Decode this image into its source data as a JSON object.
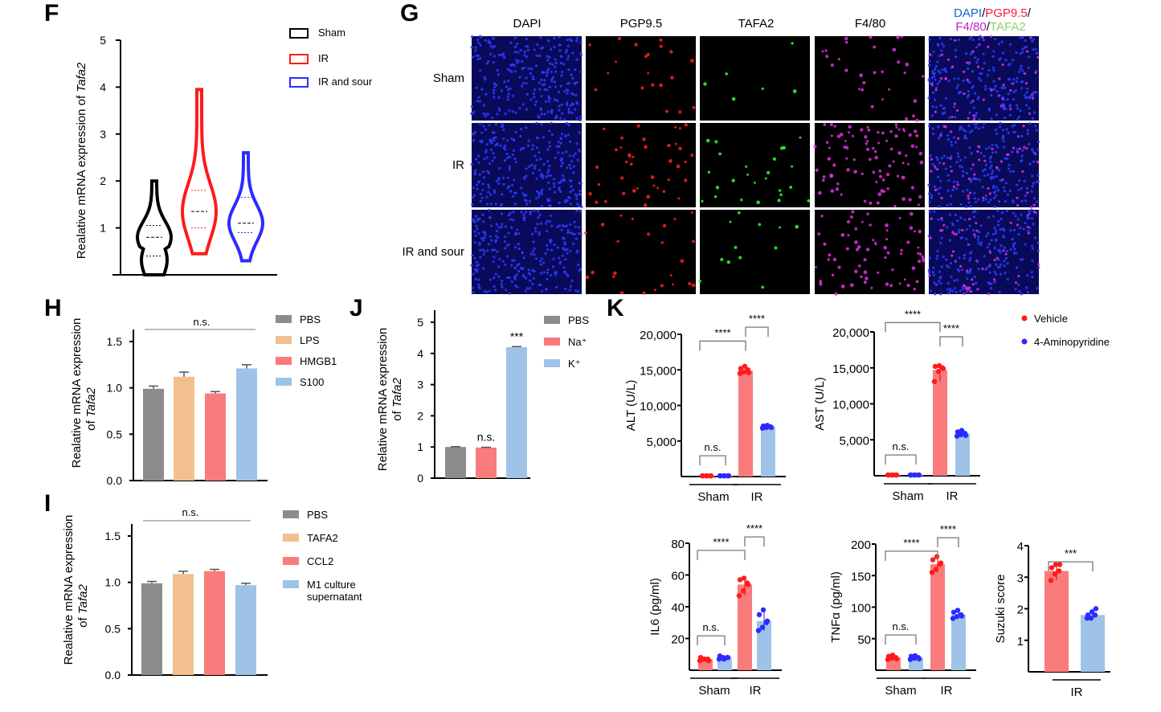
{
  "panel_letters": [
    "F",
    "G",
    "H",
    "I",
    "J",
    "K"
  ],
  "chart_data": [
    {
      "id": "F",
      "type": "violin",
      "ylabel": "Realative mRNA expression of ",
      "ylabel_italic": "Tafa2",
      "ylim": [
        0,
        5
      ],
      "yticks": [
        1,
        2,
        3,
        4,
        5
      ],
      "legend": [
        {
          "name": "Sham",
          "color": "#000000"
        },
        {
          "name": "IR",
          "color": "#ff1a1a"
        },
        {
          "name": "IR and sour",
          "color": "#2b2bff"
        }
      ],
      "legend_placement": "top-right",
      "groups": [
        {
          "name": "Sham",
          "min": 0.0,
          "max": 2.0,
          "median": 0.8,
          "q1": 0.4,
          "q3": 1.05
        },
        {
          "name": "IR",
          "min": 0.45,
          "max": 3.95,
          "median": 1.35,
          "q1": 1.0,
          "q3": 1.8
        },
        {
          "name": "IR and sour",
          "min": 0.3,
          "max": 2.6,
          "median": 1.1,
          "q1": 0.9,
          "q3": 1.65
        }
      ]
    },
    {
      "id": "H",
      "type": "bar",
      "ylabel": "Realative mRNA expression",
      "ylabel2": "of ",
      "ylabel2_italic": "Tafa2",
      "ylim": [
        0,
        1.5
      ],
      "yticks": [
        "0.0",
        "0.5",
        "1.0",
        "1.5"
      ],
      "categories": [
        "PBS",
        "LPS",
        "HMGB1",
        "S100"
      ],
      "values": [
        0.99,
        1.12,
        0.94,
        1.21
      ],
      "errors": [
        0.03,
        0.05,
        0.02,
        0.04
      ],
      "colors": [
        "#8c8c8c",
        "#f2c08f",
        "#fa7b7b",
        "#9fc3e8"
      ],
      "annotation": "n.s.",
      "legend_placement": "right"
    },
    {
      "id": "I",
      "type": "bar",
      "ylabel": "Realative mRNA expression",
      "ylabel2": "of ",
      "ylabel2_italic": "Tafa2",
      "ylim": [
        0,
        1.5
      ],
      "yticks": [
        "0.0",
        "0.5",
        "1.0",
        "1.5"
      ],
      "categories": [
        "PBS",
        "TAFA2",
        "CCL2",
        "M1 culture supernatant"
      ],
      "legend_lines": [
        [
          "PBS"
        ],
        [
          "TAFA2"
        ],
        [
          "CCL2"
        ],
        [
          "M1 culture",
          "supernatant"
        ]
      ],
      "values": [
        0.99,
        1.09,
        1.12,
        0.97
      ],
      "errors": [
        0.02,
        0.03,
        0.02,
        0.02
      ],
      "colors": [
        "#8c8c8c",
        "#f2c08f",
        "#fa7b7b",
        "#9fc3e8"
      ],
      "annotation": "n.s.",
      "legend_placement": "right"
    },
    {
      "id": "J",
      "type": "bar",
      "ylabel": "Relative mRNA expression",
      "ylabel2": "of ",
      "ylabel2_italic": "Tafa2",
      "ylim": [
        0,
        5
      ],
      "yticks": [
        "0",
        "1",
        "2",
        "3",
        "4",
        "5"
      ],
      "categories": [
        "PBS",
        "Na⁺",
        "K⁺"
      ],
      "values": [
        1.0,
        0.98,
        4.2
      ],
      "errors": [
        0.01,
        0.01,
        0.02
      ],
      "bar_labels": [
        "",
        "n.s.",
        "***"
      ],
      "colors": [
        "#8c8c8c",
        "#fa7b7b",
        "#9fc3e8"
      ],
      "legend_placement": "right"
    },
    {
      "id": "K-ALT",
      "type": "bar",
      "ylabel": "ALT (U/L)",
      "ylim": [
        0,
        20000
      ],
      "yticks": [
        "5,000",
        "10,000",
        "15,000",
        "20,000"
      ],
      "ytick_values": [
        5000,
        10000,
        15000,
        20000
      ],
      "groups": [
        "Sham",
        "IR"
      ],
      "series": [
        {
          "name": "Vehicle"
        },
        {
          "name": "4-Aminopyridine"
        }
      ],
      "values": [
        100,
        100,
        14900,
        7000
      ],
      "points": [
        [
          100,
          100,
          100,
          100,
          100,
          100
        ],
        [
          100,
          100,
          100,
          100,
          100,
          100
        ],
        [
          14500,
          14700,
          15000,
          15200,
          15500,
          14600
        ],
        [
          6800,
          6900,
          7000,
          7100,
          7200,
          6900
        ]
      ],
      "brackets": [
        {
          "from": 0,
          "to": 1,
          "label": "n.s."
        },
        {
          "from": 0,
          "to": 2,
          "label": "****"
        },
        {
          "from": 2,
          "to": 3,
          "label": "****"
        }
      ]
    },
    {
      "id": "K-AST",
      "type": "bar",
      "ylabel": "AST (U/L)",
      "ylim": [
        0,
        20000
      ],
      "yticks": [
        "5,000",
        "10,000",
        "15,000",
        "20,000"
      ],
      "ytick_values": [
        5000,
        10000,
        15000,
        20000
      ],
      "groups": [
        "Sham",
        "IR"
      ],
      "values": [
        100,
        100,
        14700,
        5900
      ],
      "points": [
        [
          100,
          100,
          100,
          100,
          100,
          100
        ],
        [
          100,
          100,
          100,
          100,
          100,
          100
        ],
        [
          13100,
          14500,
          15000,
          15200,
          15300,
          14900
        ],
        [
          5500,
          5700,
          5900,
          6100,
          6300,
          5600
        ]
      ],
      "brackets": [
        {
          "from": 0,
          "to": 1,
          "label": "n.s."
        },
        {
          "from": 0,
          "to": 2,
          "label": "****"
        },
        {
          "from": 2,
          "to": 3,
          "label": "****"
        }
      ]
    },
    {
      "id": "K-IL6",
      "type": "bar",
      "ylabel": "IL6 (pg/ml)",
      "ylim": [
        0,
        80
      ],
      "yticks": [
        "20",
        "40",
        "60",
        "80"
      ],
      "ytick_values": [
        20,
        40,
        60,
        80
      ],
      "groups": [
        "Sham",
        "IR"
      ],
      "values": [
        7,
        8,
        54,
        31
      ],
      "points": [
        [
          6,
          7,
          7,
          8,
          7,
          6
        ],
        [
          7,
          8,
          8,
          9,
          7,
          8
        ],
        [
          47,
          50,
          55,
          57,
          58,
          54
        ],
        [
          25,
          27,
          30,
          35,
          38,
          31
        ]
      ],
      "brackets": [
        {
          "from": 0,
          "to": 1,
          "label": "n.s."
        },
        {
          "from": 0,
          "to": 2,
          "label": "****"
        },
        {
          "from": 2,
          "to": 3,
          "label": "****"
        }
      ]
    },
    {
      "id": "K-TNF",
      "type": "bar",
      "ylabel": "TNFα (pg/ml)",
      "ylim": [
        0,
        200
      ],
      "yticks": [
        "50",
        "100",
        "150",
        "200"
      ],
      "ytick_values": [
        50,
        100,
        150,
        200
      ],
      "groups": [
        "Sham",
        "IR"
      ],
      "values": [
        20,
        20,
        168,
        88
      ],
      "points": [
        [
          17,
          19,
          20,
          22,
          24,
          18
        ],
        [
          17,
          19,
          20,
          22,
          23,
          18
        ],
        [
          155,
          160,
          168,
          175,
          180,
          170
        ],
        [
          82,
          85,
          88,
          92,
          95,
          86
        ]
      ],
      "brackets": [
        {
          "from": 0,
          "to": 1,
          "label": "n.s."
        },
        {
          "from": 0,
          "to": 2,
          "label": "****"
        },
        {
          "from": 2,
          "to": 3,
          "label": "****"
        }
      ]
    },
    {
      "id": "K-Suzuki",
      "type": "bar",
      "ylabel": "Suzuki score",
      "ylim": [
        0,
        4
      ],
      "yticks": [
        "1",
        "2",
        "3",
        "4"
      ],
      "ytick_values": [
        1,
        2,
        3,
        4
      ],
      "groups": [
        "IR"
      ],
      "values": [
        3.2,
        1.8
      ],
      "points": [
        [
          2.9,
          3.1,
          3.2,
          3.3,
          3.4,
          3.4
        ],
        [
          1.7,
          1.7,
          1.8,
          1.8,
          1.9,
          2.0
        ]
      ],
      "brackets": [
        {
          "from": 0,
          "to": 1,
          "label": "***"
        }
      ]
    }
  ],
  "k_legend": [
    {
      "name": "Vehicle",
      "color": "#ff1a1a"
    },
    {
      "name": "4-Aminopyridine",
      "color": "#2b2bff"
    }
  ],
  "k_colors": {
    "vehicle_bar": "#fa7b7b",
    "ap_bar": "#9fc3e8",
    "vehicle_dot": "#ff1a1a",
    "ap_dot": "#2b2bff"
  },
  "panel_G": {
    "columns": [
      {
        "label": "DAPI",
        "color": "#1f5fd6"
      },
      {
        "label": "PGP9.5",
        "color": "#ff1a3c"
      },
      {
        "label": "TAFA2",
        "color": "#8fd16b"
      },
      {
        "label": "F4/80",
        "color": "#c01fc0"
      }
    ],
    "merge_label": [
      {
        "text": "DAPI",
        "color": "#1f5fd6"
      },
      {
        "text": "/",
        "color": "#000000"
      },
      {
        "text": "PGP9.5",
        "color": "#ff1a3c"
      },
      {
        "text": "/",
        "color": "#000000"
      },
      {
        "text": "F4/80",
        "color": "#c01fc0"
      },
      {
        "text": "/",
        "color": "#000000"
      },
      {
        "text": "TAFA2",
        "color": "#8fd16b"
      }
    ],
    "rows": [
      "Sham",
      "IR",
      "IR and sour"
    ]
  }
}
